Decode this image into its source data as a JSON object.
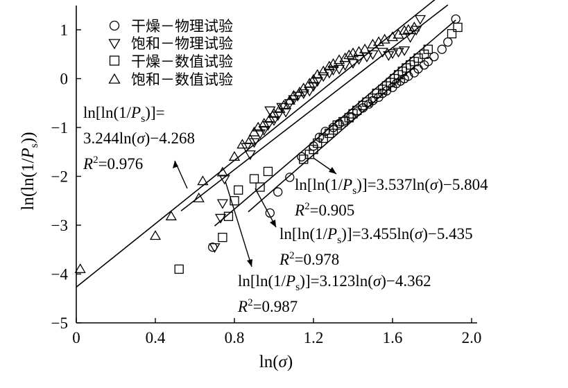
{
  "chart_data": {
    "type": "scatter",
    "xlabel": "ln(σ)",
    "ylabel": "ln(ln(1/P_s))",
    "xlim": [
      0,
      2.0
    ],
    "ylim": [
      -5,
      1.5
    ],
    "xticks": [
      0,
      0.4,
      0.8,
      1.2,
      1.6,
      2.0
    ],
    "xtick_labels": [
      "0",
      "0.4",
      "0.8",
      "1.2",
      "1.6",
      "2.0"
    ],
    "yticks": [
      -5,
      -4,
      -3,
      -2,
      -1,
      0,
      1
    ],
    "ytick_labels": [
      "−5",
      "−4",
      "−3",
      "−2",
      "−1",
      "0",
      "1"
    ],
    "legend_position": "top-left",
    "series": [
      {
        "name": "干燥－物理试验",
        "marker": "circle",
        "x": [
          0.69,
          0.98,
          1.02,
          1.08,
          1.14,
          1.2,
          1.23,
          1.26,
          1.3,
          1.33,
          1.36,
          1.39,
          1.42,
          1.45,
          1.48,
          1.5,
          1.53,
          1.55,
          1.57,
          1.6,
          1.62,
          1.64,
          1.66,
          1.68,
          1.71,
          1.73,
          1.76,
          1.78,
          1.81,
          1.85,
          1.88,
          1.92
        ],
        "y": [
          -3.45,
          -2.75,
          -2.32,
          -2.02,
          -1.6,
          -1.38,
          -1.2,
          -1.08,
          -1.0,
          -0.92,
          -0.85,
          -0.78,
          -0.68,
          -0.6,
          -0.52,
          -0.45,
          -0.38,
          -0.3,
          -0.25,
          -0.18,
          -0.1,
          -0.05,
          0.0,
          0.05,
          0.12,
          0.2,
          0.28,
          0.35,
          0.45,
          0.6,
          0.75,
          1.22
        ]
      },
      {
        "name": "饱和－物理试验",
        "marker": "triangle-down",
        "x": [
          0.7,
          0.73,
          0.74,
          0.75,
          0.86,
          0.88,
          0.9,
          0.93,
          0.95,
          0.97,
          0.98,
          1.0,
          1.02,
          1.04,
          1.06,
          1.08,
          1.1,
          1.12,
          1.15,
          1.18,
          1.2,
          1.22,
          1.25,
          1.28,
          1.3,
          1.33,
          1.36,
          1.4,
          1.43,
          1.47,
          1.5,
          1.55,
          1.58,
          1.6,
          1.63,
          1.66,
          1.69,
          1.72,
          1.74
        ],
        "y": [
          -3.45,
          -2.85,
          -2.55,
          -2.05,
          -1.4,
          -1.55,
          -1.3,
          -1.12,
          -1.05,
          -0.95,
          -0.65,
          -0.85,
          -0.75,
          -0.58,
          -0.68,
          -0.5,
          -0.42,
          -0.35,
          -0.3,
          -0.25,
          -0.15,
          -0.05,
          0.05,
          0.12,
          0.18,
          0.2,
          0.28,
          0.32,
          0.4,
          0.45,
          0.5,
          0.55,
          0.48,
          0.52,
          0.55,
          0.58,
          0.85,
          1.0,
          1.22
        ]
      },
      {
        "name": "干燥－数值试验",
        "marker": "square",
        "x": [
          0.52,
          0.74,
          0.77,
          0.8,
          0.82,
          0.9,
          0.93,
          0.97,
          1.15,
          1.18,
          1.2,
          1.22,
          1.25,
          1.28,
          1.3,
          1.32,
          1.35,
          1.38,
          1.4,
          1.42,
          1.45,
          1.47,
          1.5,
          1.52,
          1.55,
          1.57,
          1.59,
          1.61,
          1.63,
          1.65,
          1.67,
          1.69,
          1.71,
          1.73,
          1.76,
          1.78,
          1.9,
          1.93
        ],
        "y": [
          -3.9,
          -3.25,
          -2.82,
          -2.5,
          -2.28,
          -2.05,
          -2.22,
          -1.9,
          -1.65,
          -1.55,
          -1.45,
          -1.32,
          -1.22,
          -1.12,
          -1.05,
          -0.95,
          -0.88,
          -0.8,
          -0.72,
          -0.65,
          -0.55,
          -0.48,
          -0.4,
          -0.3,
          -0.22,
          -0.15,
          -0.08,
          0.0,
          0.08,
          0.15,
          0.22,
          0.28,
          0.35,
          0.42,
          0.5,
          0.6,
          0.92,
          1.05
        ]
      },
      {
        "name": "饱和－数值试验",
        "marker": "triangle-up",
        "x": [
          0.02,
          0.4,
          0.48,
          0.62,
          0.64,
          0.74,
          0.8,
          0.84,
          0.88,
          0.9,
          0.92,
          0.95,
          0.98,
          1.0,
          1.03,
          1.05,
          1.08,
          1.1,
          1.13,
          1.15,
          1.18,
          1.2,
          1.22,
          1.25,
          1.28,
          1.3,
          1.33,
          1.36,
          1.38,
          1.4,
          1.43,
          1.46,
          1.5,
          1.53,
          1.56,
          1.6,
          1.63,
          1.66,
          1.68,
          1.71
        ],
        "y": [
          -3.9,
          -3.22,
          -2.82,
          -2.45,
          -2.1,
          -1.92,
          -1.6,
          -1.35,
          -1.25,
          -1.1,
          -1.0,
          -0.92,
          -0.82,
          -0.72,
          -0.62,
          -0.55,
          -0.45,
          -0.35,
          -0.28,
          -0.2,
          -0.1,
          -0.02,
          0.08,
          0.15,
          0.25,
          0.3,
          0.38,
          0.42,
          0.48,
          0.52,
          0.55,
          0.6,
          0.7,
          0.75,
          0.8,
          0.85,
          0.9,
          0.98,
          1.0,
          1.05
        ]
      }
    ],
    "fit_lines": [
      {
        "slope": 3.244,
        "intercept": -4.268,
        "x_range": [
          0,
          1.83
        ]
      },
      {
        "slope": 3.537,
        "intercept": -5.804,
        "x_range": [
          0.87,
          1.72
        ]
      },
      {
        "slope": 3.455,
        "intercept": -5.435,
        "x_range": [
          0.7,
          1.92
        ]
      },
      {
        "slope": 3.123,
        "intercept": -4.362,
        "x_range": [
          0.53,
          1.88
        ]
      }
    ],
    "annotations": [
      {
        "line1": "ln[ln(1/P_s)]=",
        "line2": "3.244ln(σ)−4.268",
        "r2_label": "R",
        "r2_value": "=0.976"
      },
      {
        "equation": "ln[ln(1/P_s)]=3.537ln(σ)−5.804",
        "r2_label": "R",
        "r2_value": "=0.905"
      },
      {
        "equation": "ln[ln(1/P_s)]=3.455ln(σ)−5.435",
        "r2_label": "R",
        "r2_value": "=0.978"
      },
      {
        "equation": "ln[ln(1/P_s)]=3.123ln(σ)−4.362",
        "r2_label": "R",
        "r2_value": "=0.987"
      }
    ]
  }
}
